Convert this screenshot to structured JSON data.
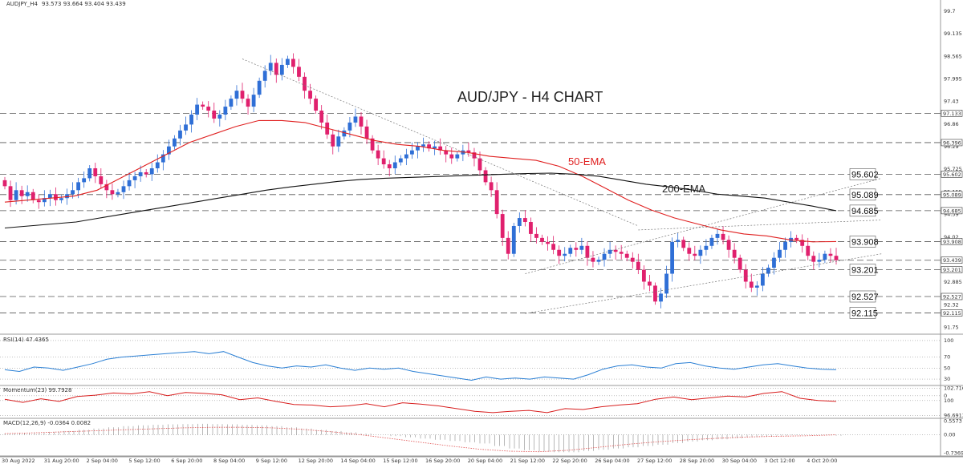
{
  "header": {
    "symbol": "AUDJPY_H4",
    "ohlc": "93.573 93.664 93.404 93.439"
  },
  "chart_data": [
    {
      "type": "candlestick",
      "title": "AUD/JPY - H4 CHART",
      "ylim": [
        91.6,
        99.9
      ],
      "y_ticks": [
        99.7,
        99.135,
        98.565,
        97.995,
        97.43,
        96.86,
        96.29,
        95.725,
        95.155,
        94.59,
        94.02,
        93.45,
        92.885,
        92.32,
        91.75
      ],
      "x_labels": [
        "30 Aug 2022",
        "31 Aug 20:00",
        "2 Sep 04:00",
        "5 Sep 12:00",
        "6 Sep 20:00",
        "8 Sep 04:00",
        "9 Sep 12:00",
        "12 Sep 20:00",
        "14 Sep 04:00",
        "15 Sep 12:00",
        "16 Sep 20:00",
        "20 Sep 04:00",
        "21 Sep 12:00",
        "22 Sep 20:00",
        "26 Sep 04:00",
        "27 Sep 12:00",
        "28 Sep 20:00",
        "30 Sep 04:00",
        "3 Oct 12:00",
        "4 Oct 20:00"
      ],
      "levels_right": [
        97.133,
        96.396,
        95.602,
        95.089,
        94.685,
        93.908,
        93.439,
        93.201,
        92.527,
        92.115
      ],
      "annotations": [
        {
          "text": "95.602",
          "y": 95.602
        },
        {
          "text": "95.089",
          "y": 95.089
        },
        {
          "text": "94.685",
          "y": 94.685
        },
        {
          "text": "93.908",
          "y": 93.908
        },
        {
          "text": "93.201",
          "y": 93.201
        },
        {
          "text": "92.527",
          "y": 92.527
        },
        {
          "text": "92.115",
          "y": 92.115
        }
      ],
      "ema_labels": {
        "ema50": "50-EMA",
        "ema200": "200-EMA"
      },
      "colors": {
        "up": "#2f6fd6",
        "down": "#e0206d",
        "ema50": "#e02020",
        "ema200": "#111111"
      },
      "closes": [
        95.3,
        94.95,
        95.2,
        95.05,
        95.15,
        94.95,
        94.9,
        95.0,
        95.1,
        94.95,
        95.0,
        95.1,
        95.2,
        95.4,
        95.5,
        95.75,
        95.55,
        95.35,
        95.2,
        95.1,
        95.15,
        95.3,
        95.45,
        95.55,
        95.65,
        95.6,
        95.75,
        95.9,
        96.1,
        96.3,
        96.5,
        96.7,
        96.85,
        97.1,
        97.35,
        97.3,
        97.2,
        97.0,
        97.1,
        97.3,
        97.5,
        97.7,
        97.5,
        97.3,
        97.6,
        97.95,
        98.2,
        98.4,
        98.1,
        98.35,
        98.5,
        98.3,
        98.05,
        97.7,
        97.5,
        97.2,
        96.9,
        96.6,
        96.3,
        96.55,
        96.7,
        96.9,
        97.05,
        96.8,
        96.5,
        96.2,
        96.0,
        95.85,
        95.75,
        95.9,
        96.0,
        96.1,
        96.2,
        96.3,
        96.35,
        96.25,
        96.3,
        96.2,
        96.1,
        96.0,
        96.1,
        96.2,
        96.15,
        96.0,
        95.7,
        95.4,
        95.2,
        94.6,
        94.0,
        93.6,
        94.3,
        94.5,
        94.4,
        94.1,
        94.0,
        93.9,
        93.85,
        93.7,
        93.55,
        93.6,
        93.75,
        93.7,
        93.8,
        93.5,
        93.4,
        93.45,
        93.6,
        93.7,
        93.65,
        93.6,
        93.5,
        93.4,
        93.2,
        92.9,
        92.8,
        92.4,
        92.6,
        93.1,
        93.9,
        93.95,
        93.75,
        93.6,
        93.55,
        93.7,
        93.8,
        94.0,
        94.1,
        93.95,
        93.7,
        93.5,
        93.2,
        92.9,
        92.75,
        92.8,
        93.1,
        93.25,
        93.5,
        93.7,
        93.9,
        94.0,
        93.95,
        93.8,
        93.55,
        93.4,
        93.45,
        93.6,
        93.55,
        93.439
      ],
      "ema50": [
        94.9,
        94.95,
        95.0,
        95.05,
        95.2,
        95.5,
        95.8,
        96.1,
        96.4,
        96.6,
        96.8,
        96.95,
        96.95,
        96.9,
        96.75,
        96.6,
        96.45,
        96.35,
        96.3,
        96.2,
        96.15,
        96.05,
        96.0,
        95.95,
        95.8,
        95.55,
        95.25,
        94.95,
        94.7,
        94.5,
        94.35,
        94.2,
        94.1,
        94.05,
        93.95,
        93.9,
        93.908
      ],
      "ema200": [
        94.25,
        94.3,
        94.35,
        94.4,
        94.5,
        94.6,
        94.7,
        94.8,
        94.9,
        95.0,
        95.1,
        95.2,
        95.28,
        95.35,
        95.42,
        95.47,
        95.5,
        95.52,
        95.54,
        95.56,
        95.58,
        95.6,
        95.62,
        95.63,
        95.6,
        95.55,
        95.45,
        95.35,
        95.28,
        95.2,
        95.1,
        95.05,
        95.0,
        94.9,
        94.8,
        94.685
      ],
      "trendlines": [
        {
          "from": [
            42,
            98.5
          ],
          "to": [
            112,
            94.3
          ]
        },
        {
          "from": [
            112,
            94.2
          ],
          "to": [
            155,
            94.45
          ]
        },
        {
          "from": [
            92,
            93.1
          ],
          "to": [
            155,
            95.5
          ]
        },
        {
          "from": [
            92,
            92.1
          ],
          "to": [
            155,
            93.6
          ]
        }
      ]
    },
    {
      "type": "line",
      "title": "RSI(14) 47.4365",
      "ylim": [
        20,
        110
      ],
      "y_ticks": [
        100,
        70,
        50,
        30,
        0
      ],
      "values": [
        47,
        44,
        52,
        50,
        46,
        52,
        58,
        66,
        70,
        72,
        74,
        76,
        78,
        80,
        76,
        80,
        70,
        60,
        54,
        50,
        54,
        52,
        56,
        50,
        46,
        50,
        48,
        50,
        44,
        40,
        36,
        32,
        28,
        34,
        30,
        32,
        30,
        34,
        32,
        30,
        38,
        48,
        54,
        56,
        52,
        50,
        58,
        60,
        54,
        50,
        48,
        52,
        56,
        58,
        54,
        50,
        48,
        47
      ]
    },
    {
      "type": "line",
      "title": "Momentum(23) 99.7928",
      "ylim": [
        96.2,
        103.2
      ],
      "y_ticks": [
        102.716,
        100,
        96.6913
      ],
      "values": [
        100.3,
        99.6,
        100.4,
        99.8,
        100.9,
        101.2,
        101.7,
        101.5,
        102.0,
        101.1,
        101.8,
        101.6,
        101.3,
        100.2,
        100.6,
        99.8,
        99.1,
        99.0,
        98.6,
        98.8,
        99.3,
        98.6,
        99.5,
        99.2,
        98.8,
        98.2,
        97.6,
        97.3,
        97.6,
        97.8,
        97.3,
        98.2,
        98.0,
        98.6,
        99.0,
        99.3,
        100.3,
        100.8,
        100.2,
        100.6,
        101.0,
        100.8,
        101.6,
        102.0,
        100.5,
        100.0,
        99.8
      ]
    },
    {
      "type": "bar",
      "title": "MACD(12,26,9) -0.0364 0.0082",
      "ylim": [
        -0.82,
        0.63
      ],
      "y_ticks": [
        0.5573,
        0.0,
        -0.7369
      ],
      "values": [
        0.05,
        0.08,
        0.1,
        0.12,
        0.15,
        0.2,
        0.25,
        0.3,
        0.35,
        0.38,
        0.4,
        0.42,
        0.43,
        0.44,
        0.43,
        0.42,
        0.4,
        0.38,
        0.35,
        0.3,
        0.25,
        0.2,
        0.15,
        0.1,
        0.05,
        0.0,
        -0.05,
        -0.1,
        -0.15,
        -0.2,
        -0.25,
        -0.3,
        -0.35,
        -0.45,
        -0.55,
        -0.62,
        -0.68,
        -0.7,
        -0.7,
        -0.65,
        -0.6,
        -0.55,
        -0.5,
        -0.45,
        -0.4,
        -0.33,
        -0.27,
        -0.22,
        -0.18,
        -0.14,
        -0.1,
        -0.07,
        -0.04,
        -0.02,
        0.0,
        -0.02,
        -0.04
      ],
      "signal": [
        0.05,
        0.08,
        0.12,
        0.16,
        0.2,
        0.24,
        0.28,
        0.3,
        0.3,
        0.28,
        0.22,
        0.12,
        0.0,
        -0.15,
        -0.3,
        -0.45,
        -0.58,
        -0.66,
        -0.68,
        -0.62,
        -0.5,
        -0.38,
        -0.28,
        -0.2,
        -0.14,
        -0.09,
        -0.06,
        -0.04,
        0.0
      ]
    }
  ]
}
